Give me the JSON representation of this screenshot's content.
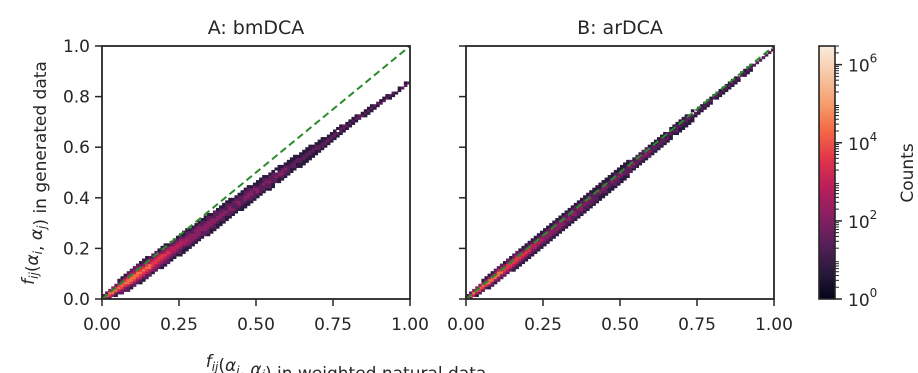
{
  "chart_data": [
    {
      "type": "heatmap",
      "title": "A: bmDCA",
      "xlabel_parts": [
        {
          "t": "f",
          "i": true
        },
        {
          "t": "ij",
          "i": true,
          "sub": true
        },
        {
          "t": "(",
          "i": false
        },
        {
          "t": "α",
          "i": true
        },
        {
          "t": "i",
          "i": true,
          "sub": true
        },
        {
          "t": ", ",
          "i": false
        },
        {
          "t": "α",
          "i": true
        },
        {
          "t": "j",
          "i": true,
          "sub": true
        },
        {
          "t": ") in weighted natural data",
          "i": false
        }
      ],
      "ylabel_parts": [
        {
          "t": "f",
          "i": true
        },
        {
          "t": "ij",
          "i": true,
          "sub": true
        },
        {
          "t": "(",
          "i": false
        },
        {
          "t": "α",
          "i": true
        },
        {
          "t": "i",
          "i": true,
          "sub": true
        },
        {
          "t": ", ",
          "i": false
        },
        {
          "t": "α",
          "i": true
        },
        {
          "t": "j",
          "i": true,
          "sub": true
        },
        {
          "t": ") in generated data",
          "i": false
        }
      ],
      "xlim": [
        0,
        1
      ],
      "ylim": [
        0,
        1
      ],
      "xticks": [
        0,
        0.25,
        0.5,
        0.75,
        1.0
      ],
      "xtick_labels": [
        "0.00",
        "0.25",
        "0.50",
        "0.75",
        "1.00"
      ],
      "yticks": [
        0,
        0.2,
        0.4,
        0.6,
        0.8,
        1.0
      ],
      "ytick_labels": [
        "0.0",
        "0.2",
        "0.4",
        "0.6",
        "0.8",
        "1.0"
      ],
      "reference_line": {
        "x": [
          0,
          1
        ],
        "y": [
          0,
          1
        ],
        "style": "dashed",
        "color": "#2a8a2a"
      },
      "band": {
        "description_points_x": [
          0.0,
          0.1,
          0.2,
          0.3,
          0.4,
          0.5,
          0.6,
          0.7,
          0.8,
          0.9,
          1.0
        ],
        "center_y": [
          0.0,
          0.085,
          0.17,
          0.255,
          0.345,
          0.43,
          0.515,
          0.6,
          0.69,
          0.775,
          0.86
        ],
        "spread": [
          0.01,
          0.03,
          0.03,
          0.03,
          0.028,
          0.026,
          0.022,
          0.018,
          0.012,
          0.008,
          0.006
        ],
        "density_peak_x": 0.08
      },
      "grid": false
    },
    {
      "type": "heatmap",
      "title": "B: arDCA",
      "xlim": [
        0,
        1
      ],
      "ylim": [
        0,
        1
      ],
      "xticks": [
        0,
        0.25,
        0.5,
        0.75,
        1.0
      ],
      "xtick_labels": [
        "0.00",
        "0.25",
        "0.50",
        "0.75",
        "1.00"
      ],
      "yticks": [
        0,
        0.2,
        0.4,
        0.6,
        0.8,
        1.0
      ],
      "reference_line": {
        "x": [
          0,
          1
        ],
        "y": [
          0,
          1
        ],
        "style": "dashed",
        "color": "#2a8a2a"
      },
      "band": {
        "description_points_x": [
          0.0,
          0.1,
          0.2,
          0.3,
          0.4,
          0.5,
          0.6,
          0.7,
          0.8,
          0.9,
          1.0
        ],
        "center_y": [
          0.0,
          0.095,
          0.19,
          0.29,
          0.39,
          0.49,
          0.59,
          0.69,
          0.79,
          0.89,
          0.99
        ],
        "spread": [
          0.01,
          0.022,
          0.024,
          0.024,
          0.024,
          0.022,
          0.02,
          0.016,
          0.012,
          0.008,
          0.005
        ],
        "density_peak_x": 0.06
      },
      "grid": false
    }
  ],
  "colorbar": {
    "label": "Counts",
    "scale": "log",
    "range": [
      1,
      3000000
    ],
    "ticks": [
      {
        "base": "10",
        "exp": "0",
        "value": 1
      },
      {
        "base": "10",
        "exp": "2",
        "value": 100
      },
      {
        "base": "10",
        "exp": "4",
        "value": 10000
      },
      {
        "base": "10",
        "exp": "6",
        "value": 1000000
      }
    ],
    "colormap": [
      "#03051a",
      "#2b1a3d",
      "#5a1f5a",
      "#8a1f62",
      "#bb1f5a",
      "#e1364a",
      "#f36a45",
      "#f6a06e",
      "#f7c8a6",
      "#faebdd"
    ]
  }
}
